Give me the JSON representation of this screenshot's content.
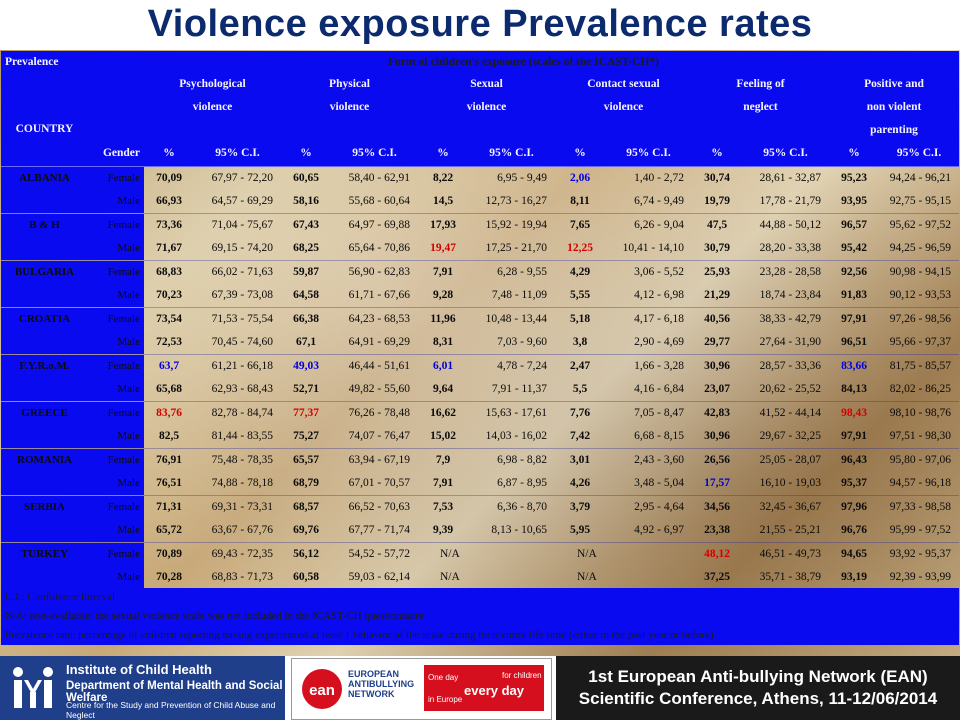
{
  "title": "Violence exposure Prevalence rates",
  "header": {
    "prevalence_label": "Prevalence",
    "form_label": "Form of children's exposure (scales of the ICAST-CH*)",
    "country_label": "COUNTRY",
    "gender_label": "Gender",
    "pct_label": "%",
    "ci_label": "95% C.I.",
    "categories": [
      {
        "line1": "Psychological",
        "line2": "violence",
        "line3": ""
      },
      {
        "line1": "Physical",
        "line2": "violence",
        "line3": ""
      },
      {
        "line1": "Sexual",
        "line2": "violence",
        "line3": ""
      },
      {
        "line1": "Contact sexual",
        "line2": "violence",
        "line3": ""
      },
      {
        "line1": "Feeling of",
        "line2": "neglect",
        "line3": ""
      },
      {
        "line1": "Positive and",
        "line2": "non violent",
        "line3": "parenting"
      }
    ]
  },
  "rows": [
    {
      "country": "ALBANIA",
      "gender": "Female",
      "cells": [
        [
          "70,09",
          "67,97 - 72,20"
        ],
        [
          "60,65",
          "58,40 - 62,91"
        ],
        [
          "8,22",
          "6,95 - 9,49"
        ],
        [
          "2,06",
          "1,40 - 2,72"
        ],
        [
          "30,74",
          "28,61 - 32,87"
        ],
        [
          "95,23",
          "94,24 - 96,21"
        ]
      ]
    },
    {
      "country": "",
      "gender": "Male",
      "cells": [
        [
          "66,93",
          "64,57 - 69,29"
        ],
        [
          "58,16",
          "55,68 - 60,64"
        ],
        [
          "14,5",
          "12,73 - 16,27"
        ],
        [
          "8,11",
          "6,74 - 9,49"
        ],
        [
          "19,79",
          "17,78 - 21,79"
        ],
        [
          "93,95",
          "92,75 - 95,15"
        ]
      ]
    },
    {
      "country": "B & H",
      "gender": "Female",
      "cells": [
        [
          "73,36",
          "71,04 - 75,67"
        ],
        [
          "67,43",
          "64,97 - 69,88"
        ],
        [
          "17,93",
          "15,92 - 19,94"
        ],
        [
          "7,65",
          "6,26 - 9,04"
        ],
        [
          "47,5",
          "44,88 - 50,12"
        ],
        [
          "96,57",
          "95,62 - 97,52"
        ]
      ]
    },
    {
      "country": "",
      "gender": "Male",
      "cells": [
        [
          "71,67",
          "69,15 - 74,20"
        ],
        [
          "68,25",
          "65,64 - 70,86"
        ],
        [
          "19,47",
          "17,25 - 21,70"
        ],
        [
          "12,25",
          "10,41 - 14,10"
        ],
        [
          "30,79",
          "28,20 - 33,38"
        ],
        [
          "95,42",
          "94,25 - 96,59"
        ]
      ]
    },
    {
      "country": "BULGARIA",
      "gender": "Female",
      "cells": [
        [
          "68,83",
          "66,02 - 71,63"
        ],
        [
          "59,87",
          "56,90 - 62,83"
        ],
        [
          "7,91",
          "6,28 - 9,55"
        ],
        [
          "4,29",
          "3,06 - 5,52"
        ],
        [
          "25,93",
          "23,28 - 28,58"
        ],
        [
          "92,56",
          "90,98 - 94,15"
        ]
      ]
    },
    {
      "country": "",
      "gender": "Male",
      "cells": [
        [
          "70,23",
          "67,39 - 73,08"
        ],
        [
          "64,58",
          "61,71 - 67,66"
        ],
        [
          "9,28",
          "7,48 - 11,09"
        ],
        [
          "5,55",
          "4,12 - 6,98"
        ],
        [
          "21,29",
          "18,74 - 23,84"
        ],
        [
          "91,83",
          "90,12 - 93,53"
        ]
      ]
    },
    {
      "country": "CROATIA",
      "gender": "Female",
      "cells": [
        [
          "73,54",
          "71,53 - 75,54"
        ],
        [
          "66,38",
          "64,23 - 68,53"
        ],
        [
          "11,96",
          "10,48 - 13,44"
        ],
        [
          "5,18",
          "4,17 - 6,18"
        ],
        [
          "40,56",
          "38,33 - 42,79"
        ],
        [
          "97,91",
          "97,26 - 98,56"
        ]
      ]
    },
    {
      "country": "",
      "gender": "Male",
      "cells": [
        [
          "72,53",
          "70,45 - 74,60"
        ],
        [
          "67,1",
          "64,91 - 69,29"
        ],
        [
          "8,31",
          "7,03 - 9,60"
        ],
        [
          "3,8",
          "2,90 - 4,69"
        ],
        [
          "29,77",
          "27,64 - 31,90"
        ],
        [
          "96,51",
          "95,66 - 97,37"
        ]
      ]
    },
    {
      "country": "F.Y.R.o.M.",
      "gender": "Female",
      "cells": [
        [
          "63,7",
          "61,21 - 66,18"
        ],
        [
          "49,03",
          "46,44 - 51,61"
        ],
        [
          "6,01",
          "4,78 - 7,24"
        ],
        [
          "2,47",
          "1,66 - 3,28"
        ],
        [
          "30,96",
          "28,57 - 33,36"
        ],
        [
          "83,66",
          "81,75 - 85,57"
        ]
      ]
    },
    {
      "country": "",
      "gender": "Male",
      "cells": [
        [
          "65,68",
          "62,93 - 68,43"
        ],
        [
          "52,71",
          "49,82 - 55,60"
        ],
        [
          "9,64",
          "7,91 - 11,37"
        ],
        [
          "5,5",
          "4,16 - 6,84"
        ],
        [
          "23,07",
          "20,62 - 25,52"
        ],
        [
          "84,13",
          "82,02 - 86,25"
        ]
      ]
    },
    {
      "country": "GREECE",
      "gender": "Female",
      "cells": [
        [
          "83,76",
          "82,78 - 84,74"
        ],
        [
          "77,37",
          "76,26 - 78,48"
        ],
        [
          "16,62",
          "15,63 - 17,61"
        ],
        [
          "7,76",
          "7,05 - 8,47"
        ],
        [
          "42,83",
          "41,52 - 44,14"
        ],
        [
          "98,43",
          "98,10 - 98,76"
        ]
      ]
    },
    {
      "country": "",
      "gender": "Male",
      "cells": [
        [
          "82,5",
          "81,44 - 83,55"
        ],
        [
          "75,27",
          "74,07 - 76,47"
        ],
        [
          "15,02",
          "14,03 - 16,02"
        ],
        [
          "7,42",
          "6,68 - 8,15"
        ],
        [
          "30,96",
          "29,67 - 32,25"
        ],
        [
          "97,91",
          "97,51 - 98,30"
        ]
      ]
    },
    {
      "country": "ROMANIA",
      "gender": "Female",
      "cells": [
        [
          "76,91",
          "75,48 - 78,35"
        ],
        [
          "65,57",
          "63,94 - 67,19"
        ],
        [
          "7,9",
          "6,98 - 8,82"
        ],
        [
          "3,01",
          "2,43 - 3,60"
        ],
        [
          "26,56",
          "25,05 - 28,07"
        ],
        [
          "96,43",
          "95,80 - 97,06"
        ]
      ]
    },
    {
      "country": "",
      "gender": "Male",
      "cells": [
        [
          "76,51",
          "74,88 - 78,18"
        ],
        [
          "68,79",
          "67,01 - 70,57"
        ],
        [
          "7,91",
          "6,87 - 8,95"
        ],
        [
          "4,26",
          "3,48 - 5,04"
        ],
        [
          "17,57",
          "16,10 - 19,03"
        ],
        [
          "95,37",
          "94,57 - 96,18"
        ]
      ]
    },
    {
      "country": "SERBIA",
      "gender": "Female",
      "cells": [
        [
          "71,31",
          "69,31 - 73,31"
        ],
        [
          "68,57",
          "66,52 - 70,63"
        ],
        [
          "7,53",
          "6,36 - 8,70"
        ],
        [
          "3,79",
          "2,95 - 4,64"
        ],
        [
          "34,56",
          "32,45 - 36,67"
        ],
        [
          "97,96",
          "97,33 - 98,58"
        ]
      ]
    },
    {
      "country": "",
      "gender": "Male",
      "cells": [
        [
          "65,72",
          "63,67 - 67,76"
        ],
        [
          "69,76",
          "67,77 - 71,74"
        ],
        [
          "9,39",
          "8,13 - 10,65"
        ],
        [
          "5,95",
          "4,92 - 6,97"
        ],
        [
          "23,38",
          "21,55 - 25,21"
        ],
        [
          "96,76",
          "95,99 - 97,52"
        ]
      ]
    },
    {
      "country": "TURKEY",
      "gender": "Female",
      "cells": [
        [
          "70,89",
          "69,43 - 72,35"
        ],
        [
          "56,12",
          "54,52 - 57,72"
        ],
        [
          "N/A",
          ""
        ],
        [
          "N/A",
          ""
        ],
        [
          "48,12",
          "46,51 - 49,73"
        ],
        [
          "94,65",
          "93,92 - 95,37"
        ]
      ]
    },
    {
      "country": "",
      "gender": "Male",
      "cells": [
        [
          "70,28",
          "68,83 - 71,73"
        ],
        [
          "60,58",
          "59,03 - 62,14"
        ],
        [
          "N/A",
          ""
        ],
        [
          "N/A",
          ""
        ],
        [
          "37,25",
          "35,71 - 38,79"
        ],
        [
          "93,19",
          "92,39 - 93,99"
        ]
      ]
    }
  ],
  "highlights": {
    "red": [
      [
        3,
        2
      ],
      [
        3,
        3
      ],
      [
        10,
        0
      ],
      [
        10,
        1
      ],
      [
        10,
        5
      ],
      [
        16,
        4
      ]
    ],
    "blue": [
      [
        0,
        3
      ],
      [
        8,
        0
      ],
      [
        8,
        1
      ],
      [
        8,
        2
      ],
      [
        8,
        5
      ],
      [
        13,
        4
      ]
    ]
  },
  "notes": [
    "C.I.: Confidence Interval",
    "N/A: non-available: the sexual violence scale was not included in the ICAST-CH questionnaire",
    "Prevalence rate: percentage of children reporting having experienced at least 1 behavior of the scale during their entire life time (either in the past year or before)"
  ],
  "footer": {
    "institute": {
      "logo_text": "IYII",
      "line1": "Institute of Child Health",
      "line2": "Department of Mental Health and Social Welfare",
      "line3": "Centre for the Study and Prevention of Child Abuse and Neglect"
    },
    "ean": {
      "logo_text": "ean",
      "text_line1": "EUROPEAN",
      "text_line2": "ANTIBULLYING",
      "text_line3": "NETWORK",
      "box_a": "One day",
      "box_b": "every day",
      "box_c": "in Europe",
      "box_d": "for children"
    },
    "conference_line1": "1st European Anti-bullying Network (EAN)",
    "conference_line2": "Scientific Conference, Athens, 11-12/06/2014"
  },
  "colors": {
    "title": "#0c2a6e",
    "table_blue": "#0a0af0",
    "highlight_red": "#d40000",
    "highlight_blue": "#0000e0",
    "footer_dark": "#1a1a1a",
    "institute_blue": "#1f3f8a",
    "ean_red": "#d60f1e"
  }
}
